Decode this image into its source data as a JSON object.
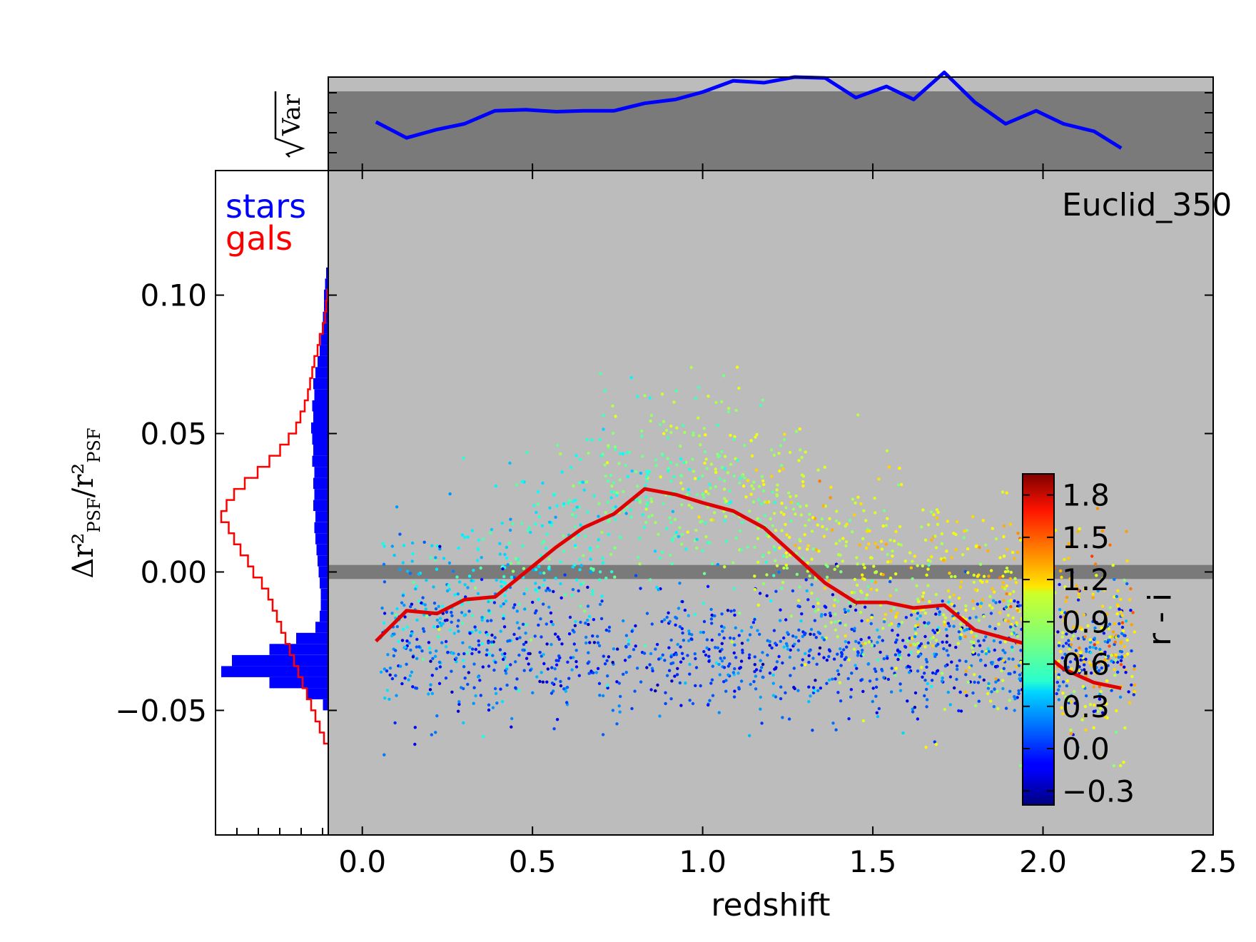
{
  "chart_data": {
    "type": "scatter",
    "title": "",
    "annotation": "Euclid_350",
    "xlabel": "redshift",
    "ylabel_main": "Δr²",
    "ylabel_main_sub": "PSF",
    "ylabel_den": "r²",
    "ylabel_den_sub": "PSF",
    "xlim": [
      -0.1,
      2.5
    ],
    "ylim": [
      -0.095,
      0.145
    ],
    "x_ticks": [
      0.0,
      0.5,
      1.0,
      1.5,
      2.0,
      2.5
    ],
    "x_tick_labels": [
      "0.0",
      "0.5",
      "1.0",
      "1.5",
      "2.0",
      "2.5"
    ],
    "y_ticks": [
      -0.05,
      0.0,
      0.05,
      0.1
    ],
    "y_tick_labels": [
      "−0.05",
      "0.00",
      "0.05",
      "0.10"
    ],
    "background_color": "#bcbcbc",
    "zero_band": {
      "y_low": -0.0015,
      "y_high": 0.0015,
      "color": "#7a7a7a"
    },
    "mean_curve": {
      "color": "#e00000",
      "x": [
        0.04,
        0.13,
        0.22,
        0.3,
        0.39,
        0.48,
        0.57,
        0.65,
        0.74,
        0.83,
        0.92,
        1.0,
        1.09,
        1.18,
        1.27,
        1.36,
        1.45,
        1.54,
        1.62,
        1.71,
        1.8,
        1.89,
        1.98,
        2.06,
        2.15,
        2.23
      ],
      "y": [
        -0.025,
        -0.014,
        -0.015,
        -0.01,
        -0.009,
        0.0,
        0.009,
        0.016,
        0.021,
        0.03,
        0.028,
        0.025,
        0.022,
        0.016,
        0.006,
        -0.004,
        -0.011,
        -0.011,
        -0.013,
        -0.012,
        -0.021,
        -0.024,
        -0.027,
        -0.035,
        -0.04,
        -0.042
      ]
    },
    "colorbar": {
      "label": "r - i",
      "range": [
        -0.4,
        1.95
      ],
      "ticks": [
        -0.3,
        0.0,
        0.3,
        0.6,
        0.9,
        1.2,
        1.5,
        1.8
      ],
      "tick_labels": [
        "−0.3",
        "0.0",
        "0.3",
        "0.6",
        "0.9",
        "1.2",
        "1.5",
        "1.8"
      ],
      "colormap": "jet"
    },
    "top_panel": {
      "ylabel": "Var",
      "band_color": "#7a7a7a",
      "line_color": "#0000ff",
      "x": [
        0.04,
        0.13,
        0.22,
        0.3,
        0.39,
        0.48,
        0.57,
        0.65,
        0.74,
        0.83,
        0.92,
        1.0,
        1.09,
        1.18,
        1.27,
        1.36,
        1.45,
        1.54,
        1.62,
        1.71,
        1.8,
        1.89,
        1.98,
        2.06,
        2.15,
        2.23
      ],
      "y": [
        0.52,
        0.35,
        0.44,
        0.5,
        0.64,
        0.65,
        0.63,
        0.64,
        0.64,
        0.72,
        0.76,
        0.84,
        0.96,
        0.94,
        1.0,
        0.99,
        0.78,
        0.9,
        0.76,
        1.05,
        0.73,
        0.5,
        0.64,
        0.5,
        0.42,
        0.24
      ]
    },
    "legend": [
      {
        "name": "stars",
        "color": "#0000ff"
      },
      {
        "name": "gals",
        "color": "#ff0000"
      }
    ],
    "histogram_stars": {
      "color": "#0000ff",
      "bins_y": [
        0.108,
        0.104,
        0.1,
        0.096,
        0.092,
        0.088,
        0.084,
        0.08,
        0.076,
        0.072,
        0.068,
        0.064,
        0.06,
        0.056,
        0.052,
        0.048,
        0.044,
        0.04,
        0.036,
        0.032,
        0.028,
        0.024,
        0.02,
        0.016,
        0.012,
        0.008,
        0.004,
        0.0,
        -0.004,
        -0.008,
        -0.012,
        -0.016,
        -0.02,
        -0.024,
        -0.028,
        -0.032,
        -0.036,
        -0.04,
        -0.044,
        -0.048
      ],
      "counts": [
        0.02,
        0.03,
        0.04,
        0.04,
        0.05,
        0.06,
        0.07,
        0.08,
        0.1,
        0.12,
        0.14,
        0.13,
        0.15,
        0.14,
        0.16,
        0.15,
        0.14,
        0.15,
        0.13,
        0.14,
        0.13,
        0.14,
        0.12,
        0.13,
        0.12,
        0.11,
        0.1,
        0.09,
        0.08,
        0.07,
        0.07,
        0.08,
        0.12,
        0.3,
        0.55,
        0.9,
        1.0,
        0.55,
        0.2,
        0.05
      ]
    },
    "histogram_gals": {
      "color": "#ff0000",
      "bins_y": [
        0.1,
        0.096,
        0.092,
        0.088,
        0.084,
        0.08,
        0.076,
        0.072,
        0.068,
        0.064,
        0.06,
        0.056,
        0.052,
        0.048,
        0.044,
        0.04,
        0.036,
        0.032,
        0.028,
        0.024,
        0.02,
        0.016,
        0.012,
        0.008,
        0.004,
        0.0,
        -0.004,
        -0.008,
        -0.012,
        -0.016,
        -0.02,
        -0.024,
        -0.028,
        -0.032,
        -0.036,
        -0.04,
        -0.044,
        -0.048,
        -0.052,
        -0.056,
        -0.06
      ],
      "counts": [
        0.01,
        0.02,
        0.03,
        0.05,
        0.08,
        0.1,
        0.13,
        0.15,
        0.17,
        0.19,
        0.22,
        0.26,
        0.3,
        0.37,
        0.45,
        0.55,
        0.66,
        0.78,
        0.88,
        0.95,
        1.0,
        0.93,
        0.88,
        0.82,
        0.75,
        0.7,
        0.62,
        0.56,
        0.52,
        0.48,
        0.44,
        0.4,
        0.36,
        0.32,
        0.28,
        0.24,
        0.2,
        0.16,
        0.12,
        0.08,
        0.04
      ]
    }
  }
}
